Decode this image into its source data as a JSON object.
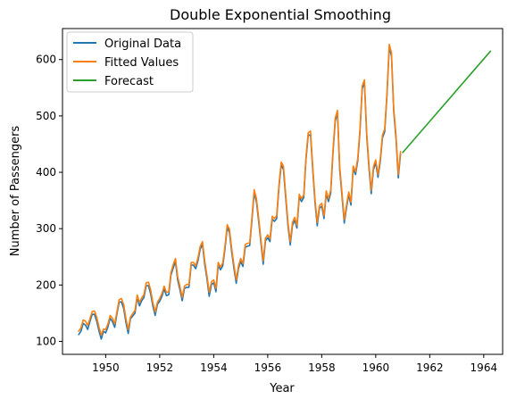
{
  "chart_data": {
    "type": "line",
    "title": "Double Exponential Smoothing",
    "xlabel": "Year",
    "ylabel": "Number of Passengers",
    "xlim": [
      1948.4,
      1964.7
    ],
    "ylim": [
      77,
      655
    ],
    "xticks": [
      1950,
      1952,
      1954,
      1956,
      1958,
      1960,
      1962,
      1964
    ],
    "yticks": [
      100,
      200,
      300,
      400,
      500,
      600
    ],
    "grid": false,
    "legend_position": "upper-left",
    "series": [
      {
        "name": "Original Data",
        "color": "#1f77b4",
        "x_start": 1949.0,
        "x_step": 0.0833333,
        "values": [
          112,
          118,
          132,
          129,
          121,
          135,
          148,
          148,
          136,
          119,
          104,
          118,
          115,
          126,
          141,
          135,
          125,
          149,
          170,
          170,
          158,
          133,
          114,
          140,
          145,
          150,
          178,
          163,
          172,
          178,
          199,
          199,
          184,
          162,
          146,
          166,
          171,
          180,
          193,
          181,
          183,
          218,
          230,
          242,
          209,
          191,
          172,
          194,
          196,
          196,
          236,
          235,
          229,
          243,
          264,
          272,
          237,
          211,
          180,
          201,
          204,
          188,
          235,
          227,
          234,
          264,
          302,
          293,
          259,
          229,
          203,
          229,
          242,
          233,
          267,
          269,
          270,
          315,
          364,
          347,
          312,
          274,
          237,
          278,
          284,
          277,
          317,
          313,
          318,
          374,
          413,
          405,
          355,
          306,
          271,
          306,
          315,
          301,
          356,
          348,
          355,
          422,
          465,
          467,
          404,
          347,
          305,
          336,
          340,
          318,
          362,
          348,
          363,
          435,
          491,
          505,
          404,
          359,
          310,
          337,
          360,
          342,
          406,
          396,
          420,
          472,
          548,
          559,
          463,
          407,
          362,
          405,
          417,
          391,
          419,
          461,
          472,
          535,
          622,
          606,
          508,
          461,
          390,
          432
        ]
      },
      {
        "name": "Fitted Values",
        "color": "#ff7f0e",
        "x_start": 1949.0,
        "x_step": 0.0833333,
        "values": [
          118,
          124,
          138,
          136,
          128,
          140,
          153,
          154,
          143,
          126,
          111,
          122,
          121,
          131,
          146,
          141,
          131,
          153,
          174,
          176,
          165,
          140,
          121,
          143,
          149,
          155,
          182,
          169,
          177,
          183,
          204,
          205,
          191,
          168,
          152,
          170,
          176,
          185,
          198,
          187,
          188,
          222,
          236,
          247,
          215,
          197,
          178,
          198,
          201,
          201,
          240,
          240,
          234,
          248,
          269,
          277,
          243,
          217,
          187,
          206,
          209,
          194,
          240,
          232,
          239,
          269,
          307,
          299,
          265,
          235,
          209,
          234,
          247,
          238,
          272,
          274,
          275,
          320,
          369,
          353,
          318,
          280,
          243,
          283,
          289,
          282,
          322,
          318,
          323,
          379,
          418,
          411,
          361,
          312,
          277,
          311,
          320,
          306,
          361,
          353,
          360,
          427,
          470,
          473,
          410,
          353,
          311,
          341,
          345,
          323,
          367,
          353,
          368,
          440,
          496,
          510,
          410,
          365,
          316,
          342,
          365,
          347,
          411,
          401,
          425,
          477,
          553,
          564,
          469,
          413,
          368,
          410,
          422,
          396,
          424,
          466,
          477,
          540,
          627,
          612,
          514,
          467,
          396,
          437
        ]
      },
      {
        "name": "Forecast",
        "color": "#2ca02c",
        "x": [
          1961.0,
          1964.25
        ],
        "values": [
          435,
          615
        ]
      }
    ]
  }
}
